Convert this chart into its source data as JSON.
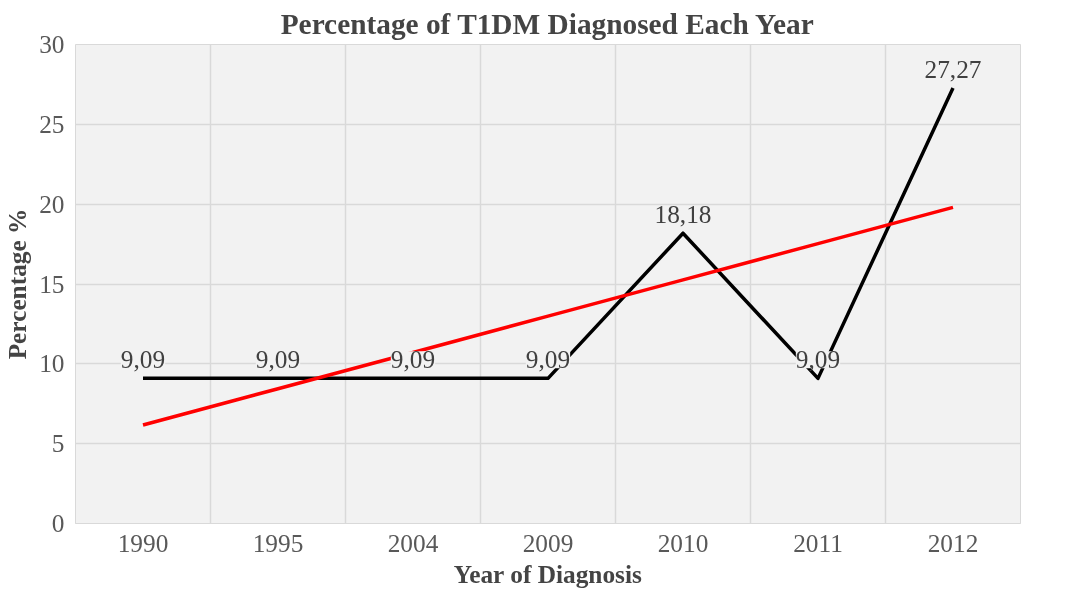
{
  "chart_data": {
    "type": "line",
    "title": "Percentage of T1DM Diagnosed Each Year",
    "xlabel": "Year of Diagnosis",
    "ylabel": "Percentage %",
    "categories": [
      "1990",
      "1995",
      "2004",
      "2009",
      "2010",
      "2011",
      "2012"
    ],
    "series": [
      {
        "color": "#000000",
        "values": [
          9.09,
          9.09,
          9.09,
          9.09,
          18.18,
          9.09,
          27.27
        ],
        "value_labels": [
          "9,09",
          "9,09",
          "9,09",
          "9,09",
          "18,18",
          "9,09",
          "27,27"
        ]
      },
      {
        "type": "line",
        "color": "#ff0000",
        "values": [
          6.17,
          8.44,
          10.71,
          12.99,
          15.26,
          17.53,
          19.8
        ]
      }
    ],
    "ylim": [
      0,
      30
    ],
    "yticks": [
      0,
      5,
      10,
      15,
      20,
      25,
      30
    ],
    "grid": true,
    "marker": "none",
    "line_style": "solid"
  }
}
